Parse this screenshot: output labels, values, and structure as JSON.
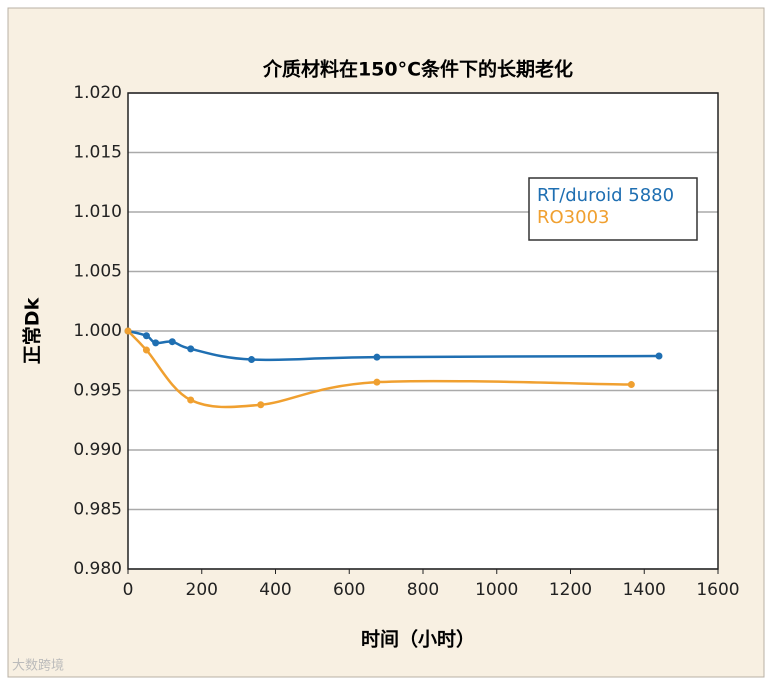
{
  "chart_data": {
    "type": "line",
    "title": "介质材料在150°C条件下的长期老化",
    "x_label": "时间（小时）",
    "y_label": "正常Dk",
    "xlim": [
      0,
      1600
    ],
    "xticks": [
      0,
      200,
      400,
      600,
      800,
      1000,
      1200,
      1400,
      1600
    ],
    "ylim": [
      0.98,
      1.02
    ],
    "yticks": [
      {
        "value": 0.98,
        "label": "0.980"
      },
      {
        "value": 0.985,
        "label": "0.985"
      },
      {
        "value": 0.99,
        "label": "0.990"
      },
      {
        "value": 0.995,
        "label": "0.995"
      },
      {
        "value": 1.0,
        "label": "1.000"
      },
      {
        "value": 1.005,
        "label": "1.005"
      },
      {
        "value": 1.01,
        "label": "1.010"
      },
      {
        "value": 1.015,
        "label": "1.015"
      },
      {
        "value": 1.02,
        "label": "1.020"
      }
    ],
    "grid": true,
    "legend": "upper right",
    "series": [
      {
        "name": "RT/duroid 5880",
        "color": "#1f6fb2",
        "x": [
          0,
          50,
          75,
          120,
          170,
          335,
          675,
          1440
        ],
        "values": [
          1.0,
          0.9996,
          0.999,
          0.9991,
          0.9985,
          0.9976,
          0.9978,
          0.9979
        ]
      },
      {
        "name": "RO3003",
        "color": "#f0a030",
        "x": [
          0,
          50,
          170,
          360,
          675,
          1365
        ],
        "values": [
          1.0,
          0.9984,
          0.9942,
          0.9938,
          0.9957,
          0.9955
        ]
      }
    ],
    "watermark": "大数跨境"
  }
}
